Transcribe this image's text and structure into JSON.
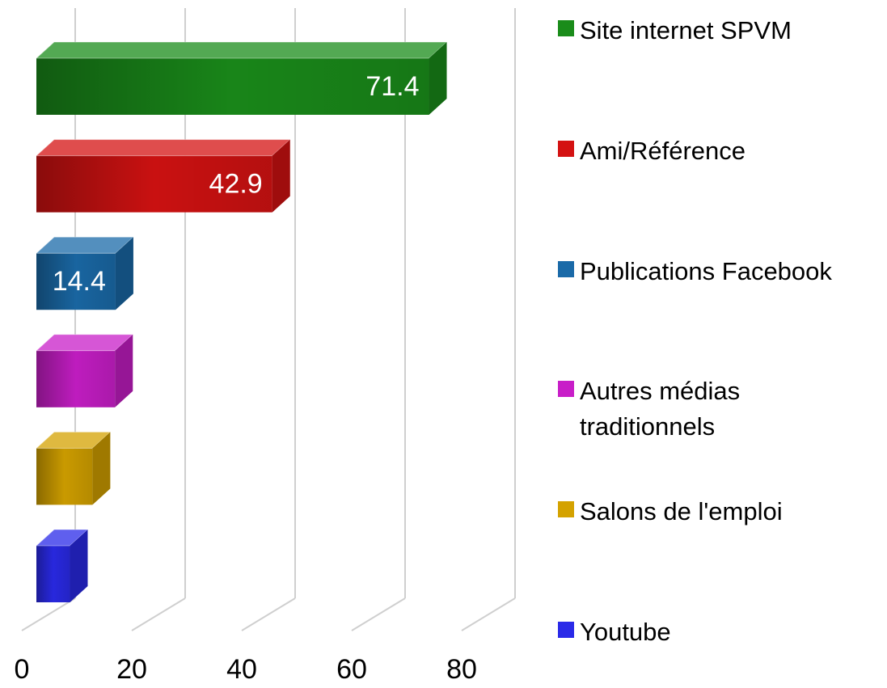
{
  "chart_data": {
    "type": "bar",
    "orientation": "horizontal",
    "series": [
      {
        "name": "Site internet SPVM",
        "color": "#1a8c1a",
        "values": [
          71.4
        ],
        "show_labels": true
      },
      {
        "name": "Ami/Référence",
        "color": "#d41212",
        "values": [
          42.9
        ],
        "show_labels": true
      },
      {
        "name": "Publications Facebook",
        "color": "#1a6aa8",
        "values": [
          14.4
        ],
        "show_labels": true
      },
      {
        "name": "Autres médias traditionnels",
        "color": "#c81ec8",
        "values": [
          14.3
        ],
        "show_labels": false
      },
      {
        "name": "Salons de l'emploi",
        "color": "#d4a200",
        "values": [
          10.2
        ],
        "show_labels": false
      },
      {
        "name": "Youtube",
        "color": "#2a2ae8",
        "values": [
          6.1
        ],
        "show_labels": false
      }
    ],
    "xlim": [
      0,
      80
    ],
    "xticks": [
      0,
      20,
      40,
      60,
      80
    ],
    "grid": true,
    "legend": "right"
  }
}
